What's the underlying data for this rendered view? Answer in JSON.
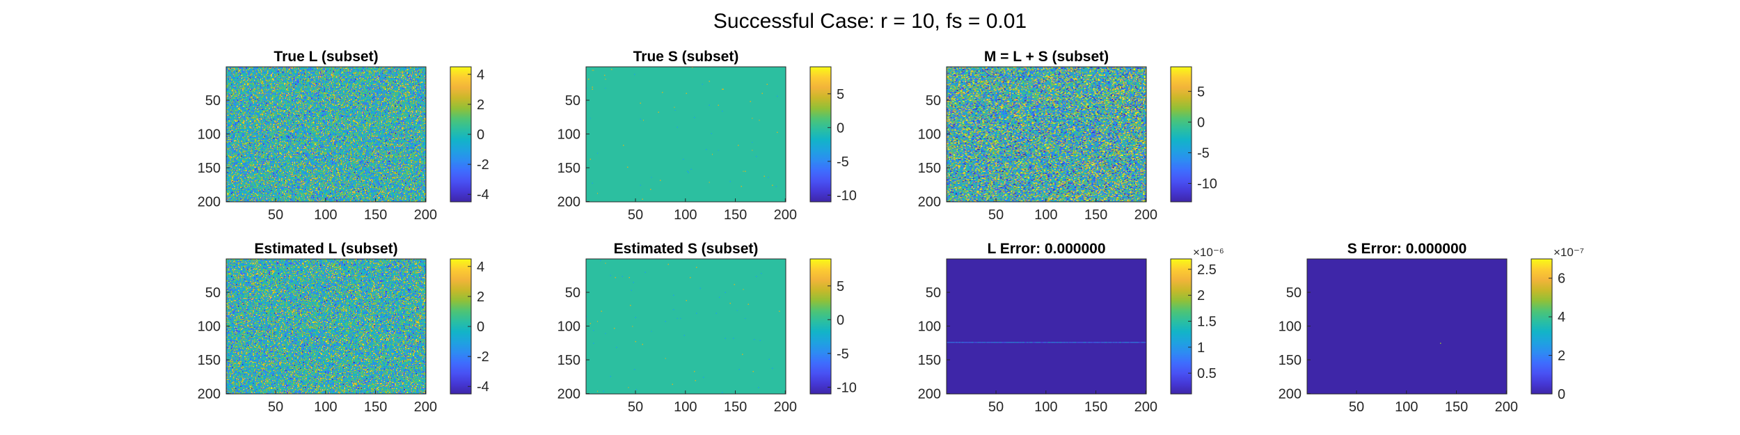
{
  "figure": {
    "suptitle": "Successful Case: r = 10, fs = 0.01"
  },
  "colormap": [
    "#3e26a8",
    "#4538d6",
    "#4852f4",
    "#3e6dfe",
    "#2d8cf2",
    "#1ea3df",
    "#12b4c7",
    "#2cbfa0",
    "#4fc474",
    "#92c037",
    "#c9b82a",
    "#f2b43a",
    "#fdcd31",
    "#f9fb15"
  ],
  "chart_data": [
    {
      "type": "heatmap",
      "id": "true-l",
      "title": "True L (subset)",
      "xticks": [
        50,
        100,
        150,
        200
      ],
      "yticks": [
        50,
        100,
        150,
        200
      ],
      "xlim": [
        0.5,
        200.5
      ],
      "ylim": [
        0.5,
        200.5
      ],
      "clim": [
        -4.5,
        4.5
      ],
      "colorbar_ticks": [
        -4,
        -2,
        0,
        2,
        4
      ],
      "colorbar_exponent": "",
      "pattern": "dense",
      "noise_level": 0.45
    },
    {
      "type": "heatmap",
      "id": "true-s",
      "title": "True S (subset)",
      "xticks": [
        50,
        100,
        150,
        200
      ],
      "yticks": [
        50,
        100,
        150,
        200
      ],
      "xlim": [
        0.5,
        200.5
      ],
      "ylim": [
        0.5,
        200.5
      ],
      "clim": [
        -11,
        9
      ],
      "colorbar_ticks": [
        -10,
        -5,
        0,
        5
      ],
      "colorbar_exponent": "",
      "pattern": "sparse",
      "base_level": 0.55
    },
    {
      "type": "heatmap",
      "id": "m-l-plus-s",
      "title": "M = L + S (subset)",
      "xticks": [
        50,
        100,
        150,
        200
      ],
      "yticks": [
        50,
        100,
        150,
        200
      ],
      "xlim": [
        0.5,
        200.5
      ],
      "ylim": [
        0.5,
        200.5
      ],
      "clim": [
        -13,
        9
      ],
      "colorbar_ticks": [
        -10,
        -5,
        0,
        5
      ],
      "colorbar_exponent": "",
      "pattern": "dense",
      "noise_level": 0.6
    },
    {
      "type": "heatmap",
      "id": "estimated-l",
      "title": "Estimated L (subset)",
      "xticks": [
        50,
        100,
        150,
        200
      ],
      "yticks": [
        50,
        100,
        150,
        200
      ],
      "xlim": [
        0.5,
        200.5
      ],
      "ylim": [
        0.5,
        200.5
      ],
      "clim": [
        -4.5,
        4.5
      ],
      "colorbar_ticks": [
        -4,
        -2,
        0,
        2,
        4
      ],
      "colorbar_exponent": "",
      "pattern": "dense",
      "noise_level": 0.45
    },
    {
      "type": "heatmap",
      "id": "estimated-s",
      "title": "Estimated S (subset)",
      "xticks": [
        50,
        100,
        150,
        200
      ],
      "yticks": [
        50,
        100,
        150,
        200
      ],
      "xlim": [
        0.5,
        200.5
      ],
      "ylim": [
        0.5,
        200.5
      ],
      "clim": [
        -11,
        9
      ],
      "colorbar_ticks": [
        -10,
        -5,
        0,
        5
      ],
      "colorbar_exponent": "",
      "pattern": "sparse",
      "base_level": 0.55
    },
    {
      "type": "heatmap",
      "id": "l-error",
      "title": "L Error: 0.000000",
      "xticks": [
        50,
        100,
        150,
        200
      ],
      "yticks": [
        50,
        100,
        150,
        200
      ],
      "xlim": [
        0.5,
        200.5
      ],
      "ylim": [
        0.5,
        200.5
      ],
      "clim": [
        0.1,
        2.7
      ],
      "colorbar_ticks": [
        0.5,
        1,
        1.5,
        2,
        2.5
      ],
      "colorbar_exponent": "×10⁻⁶",
      "pattern": "error-row",
      "error_row": 123
    },
    {
      "type": "heatmap",
      "id": "s-error",
      "title": "S Error: 0.000000",
      "xticks": [
        50,
        100,
        150,
        200
      ],
      "yticks": [
        50,
        100,
        150,
        200
      ],
      "xlim": [
        0.5,
        200.5
      ],
      "ylim": [
        0.5,
        200.5
      ],
      "clim": [
        0,
        7
      ],
      "colorbar_ticks": [
        0,
        2,
        4,
        6
      ],
      "colorbar_exponent": "×10⁻⁷",
      "pattern": "error-point",
      "error_point": [
        133,
        124
      ]
    }
  ]
}
